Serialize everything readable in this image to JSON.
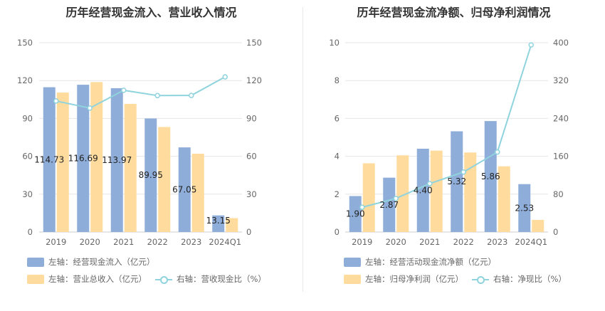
{
  "colors": {
    "blue": "#8fadd9",
    "orange": "#ffdb9e",
    "line": "#8fd3dd",
    "grid": "#e6e6e6"
  },
  "chart_data": [
    {
      "type": "bar",
      "title": "历年经营现金流入、营业收入情况",
      "categories": [
        "2019",
        "2020",
        "2021",
        "2022",
        "2023",
        "2024Q1"
      ],
      "left_axis": {
        "ticks": [
          "0",
          "30",
          "60",
          "90",
          "120",
          "150"
        ],
        "ylim": [
          0,
          150
        ]
      },
      "right_axis": {
        "ticks": [
          "0",
          "30",
          "60",
          "90",
          "120",
          "150"
        ],
        "ylim": [
          0,
          150
        ]
      },
      "series": [
        {
          "name": "左轴：经营现金流入（亿元）",
          "type": "bar",
          "axis": "left",
          "values": [
            114.73,
            116.69,
            113.97,
            89.95,
            67.05,
            13.15
          ],
          "labels": [
            "114.73",
            "116.69",
            "113.97",
            "89.95",
            "67.05",
            "13.15"
          ]
        },
        {
          "name": "左轴：营业总收入（亿元）",
          "type": "bar",
          "axis": "left",
          "values": [
            110.5,
            118.8,
            101.5,
            83.2,
            62.0,
            11.0
          ]
        },
        {
          "name": "右轴：营收现金比（%）",
          "type": "line",
          "axis": "right",
          "values": [
            103.8,
            98.2,
            112.3,
            108.1,
            108.2,
            122.9
          ]
        }
      ],
      "legend": {
        "placement": "bottom-left"
      }
    },
    {
      "type": "bar",
      "title": "历年经营现金流净额、归母净利润情况",
      "categories": [
        "2019",
        "2020",
        "2021",
        "2022",
        "2023",
        "2024Q1"
      ],
      "left_axis": {
        "ticks": [
          "0",
          "2",
          "4",
          "6",
          "8",
          "10"
        ],
        "ylim": [
          0,
          10
        ]
      },
      "right_axis": {
        "ticks": [
          "0",
          "80",
          "160",
          "240",
          "320",
          "400"
        ],
        "ylim": [
          0,
          400
        ]
      },
      "series": [
        {
          "name": "左轴：经营活动现金流净额（亿元）",
          "type": "bar",
          "axis": "left",
          "values": [
            1.9,
            2.87,
            4.4,
            5.32,
            5.86,
            2.53
          ],
          "labels": [
            "1.90",
            "2.87",
            "4.40",
            "5.32",
            "5.86",
            "2.53"
          ]
        },
        {
          "name": "左轴：归母净利润（亿元）",
          "type": "bar",
          "axis": "left",
          "values": [
            3.63,
            4.05,
            4.3,
            4.2,
            3.47,
            0.64
          ]
        },
        {
          "name": "右轴：净现比（%）",
          "type": "line",
          "axis": "right",
          "values": [
            52.3,
            70.9,
            102.3,
            126.7,
            168.9,
            395.3
          ]
        }
      ],
      "legend": {
        "placement": "bottom-left"
      }
    }
  ]
}
